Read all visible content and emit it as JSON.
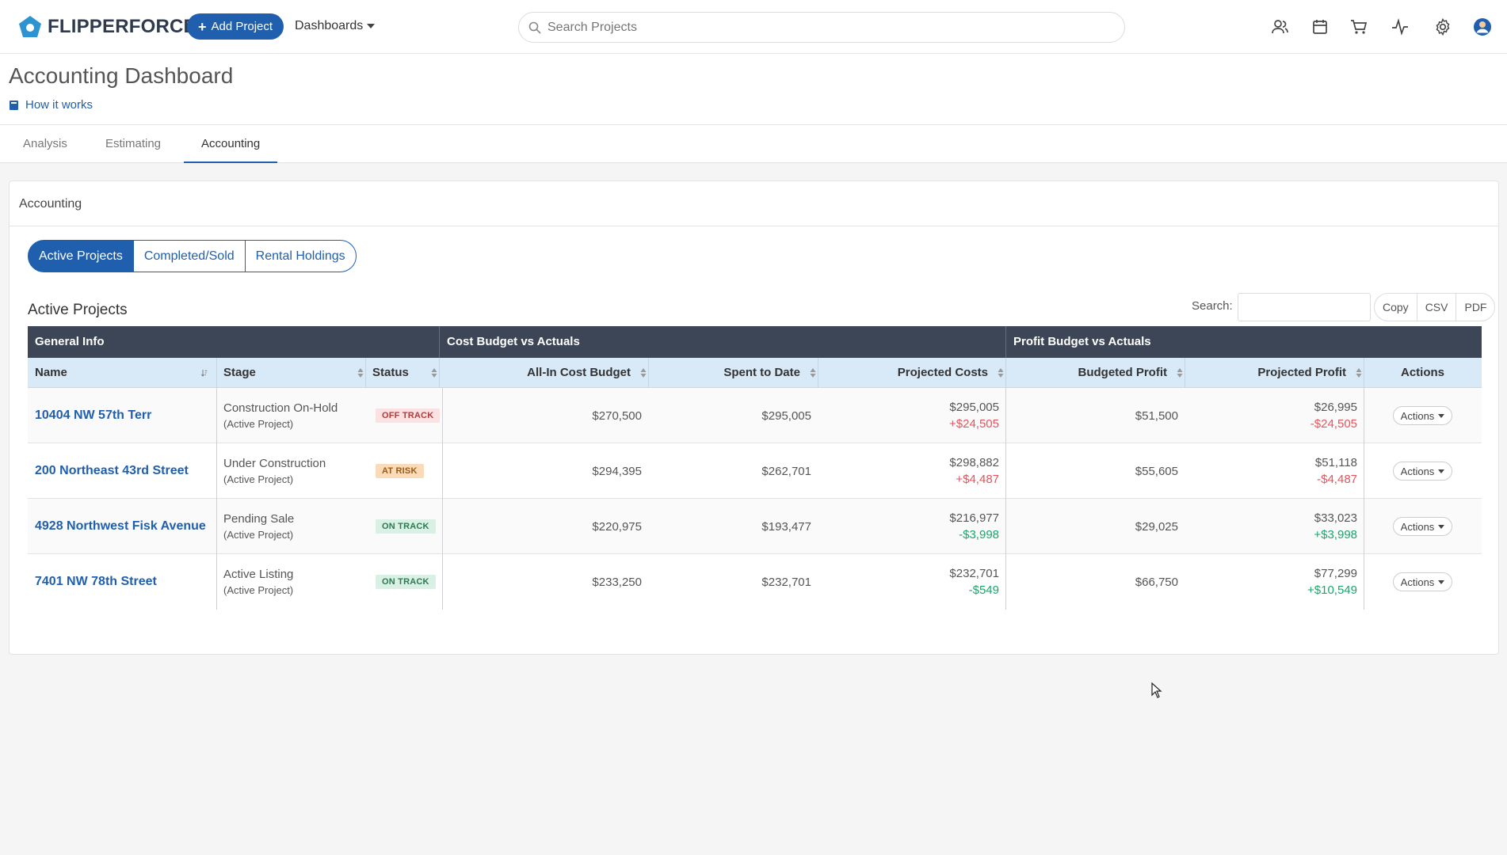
{
  "navbar": {
    "brand": "FLIPPERFORCE",
    "add_project_label": "Add Project",
    "dashboards_label": "Dashboards",
    "search_placeholder": "Search Projects",
    "icons": [
      "users-icon",
      "calendar-icon",
      "cart-icon",
      "activity-icon",
      "gear-icon",
      "avatar-icon"
    ]
  },
  "page": {
    "title": "Accounting Dashboard",
    "how_it_works": "How it works"
  },
  "tabs": [
    {
      "label": "Analysis",
      "active": false
    },
    {
      "label": "Estimating",
      "active": false
    },
    {
      "label": "Accounting",
      "active": true
    }
  ],
  "card": {
    "header": "Accounting",
    "segments": [
      "Active Projects",
      "Completed/Sold",
      "Rental Holdings"
    ],
    "table_title": "Active Projects",
    "search_label": "Search:",
    "export": [
      "Copy",
      "CSV",
      "PDF"
    ]
  },
  "table": {
    "groups": [
      "General Info",
      "Cost Budget vs Actuals",
      "Profit Budget vs Actuals"
    ],
    "columns": [
      "Name",
      "Stage",
      "Status",
      "All-In Cost Budget",
      "Spent to Date",
      "Projected Costs",
      "Budgeted Profit",
      "Projected Profit",
      "Actions"
    ],
    "rows": [
      {
        "name": "10404 NW 57th Terr",
        "stage": "Construction On-Hold",
        "stage_sub": "(Active Project)",
        "status": "OFF TRACK",
        "status_kind": "off",
        "cost_budget": "$270,500",
        "spent": "$295,005",
        "proj_cost": "$295,005",
        "proj_cost_diff": "+$24,505",
        "proj_cost_kind": "neg",
        "budget_profit": "$51,500",
        "proj_profit": "$26,995",
        "proj_profit_diff": "-$24,505",
        "proj_profit_kind": "neg",
        "action": "Actions"
      },
      {
        "name": "200 Northeast 43rd Street",
        "stage": "Under Construction",
        "stage_sub": "(Active Project)",
        "status": "AT RISK",
        "status_kind": "risk",
        "cost_budget": "$294,395",
        "spent": "$262,701",
        "proj_cost": "$298,882",
        "proj_cost_diff": "+$4,487",
        "proj_cost_kind": "neg",
        "budget_profit": "$55,605",
        "proj_profit": "$51,118",
        "proj_profit_diff": "-$4,487",
        "proj_profit_kind": "neg",
        "action": "Actions"
      },
      {
        "name": "4928 Northwest Fisk Avenue",
        "stage": "Pending Sale",
        "stage_sub": "(Active Project)",
        "status": "ON TRACK",
        "status_kind": "on",
        "cost_budget": "$220,975",
        "spent": "$193,477",
        "proj_cost": "$216,977",
        "proj_cost_diff": "-$3,998",
        "proj_cost_kind": "pos",
        "budget_profit": "$29,025",
        "proj_profit": "$33,023",
        "proj_profit_diff": "+$3,998",
        "proj_profit_kind": "pos",
        "action": "Actions"
      },
      {
        "name": "7401 NW 78th Street",
        "stage": "Active Listing",
        "stage_sub": "(Active Project)",
        "status": "ON TRACK",
        "status_kind": "on",
        "cost_budget": "$233,250",
        "spent": "$232,701",
        "proj_cost": "$232,701",
        "proj_cost_diff": "-$549",
        "proj_cost_kind": "pos",
        "budget_profit": "$66,750",
        "proj_profit": "$77,299",
        "proj_profit_diff": "+$10,549",
        "proj_profit_kind": "pos",
        "action": "Actions"
      }
    ]
  },
  "colors": {
    "brand_blue": "#1f5fae",
    "table_group_bg": "#3d4656",
    "table_head_bg": "#d8e9f7",
    "negative": "#e2545e",
    "positive": "#1aa56b"
  }
}
